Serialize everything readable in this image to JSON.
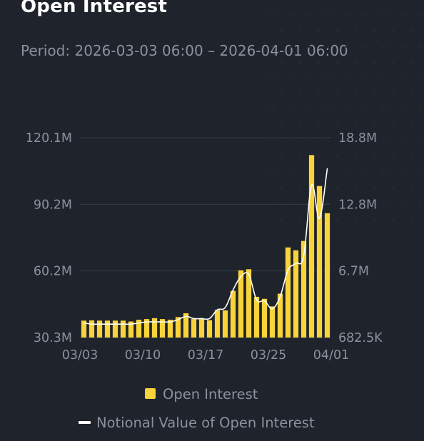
{
  "header": {
    "title": "Open Interest",
    "period_label": "Period:",
    "period_start": "2026-03-03 06:00",
    "period_sep": "–",
    "period_end": "2026-04-01 06:00"
  },
  "colors": {
    "background": "#1f232b",
    "bar": "#f8d33a",
    "line": "#ffffff",
    "grid": "#363b45",
    "text": "#8b919d"
  },
  "chart_data": {
    "type": "bar",
    "title": "Open Interest",
    "grid": true,
    "legend_position": "bottom",
    "x_ticks": [
      "03/03",
      "03/10",
      "03/17",
      "03/25",
      "04/01"
    ],
    "y_left": {
      "ticks": [
        "120.1M",
        "90.2M",
        "60.2M",
        "30.3M"
      ],
      "ylim": [
        30.3,
        120.1
      ],
      "unit": "M"
    },
    "y_right": {
      "ticks": [
        "18.8M",
        "12.8M",
        "6.7M",
        "682.5K"
      ],
      "ylim": [
        0.6825,
        18.8
      ],
      "unit": "M"
    },
    "series": [
      {
        "name": "Open Interest",
        "type": "bar",
        "axis": "left",
        "values": [
          37.9,
          38.0,
          37.9,
          37.9,
          37.9,
          37.9,
          37.5,
          38.3,
          38.6,
          39.0,
          38.6,
          38.3,
          39.5,
          41.2,
          38.6,
          38.6,
          38.1,
          42.7,
          42.5,
          51.3,
          60.5,
          61.0,
          48.6,
          47.7,
          44.3,
          50.0,
          70.8,
          69.5,
          73.7,
          112.3,
          98.4,
          86.2
        ]
      },
      {
        "name": "Notional Value of Open Interest",
        "type": "line",
        "axis": "right",
        "values": [
          2.0,
          1.9,
          1.9,
          1.9,
          1.9,
          1.9,
          1.9,
          2.0,
          2.1,
          2.1,
          2.1,
          2.1,
          2.3,
          2.6,
          2.4,
          2.4,
          2.4,
          3.2,
          3.4,
          5.0,
          6.2,
          6.4,
          4.1,
          4.0,
          3.3,
          4.4,
          6.8,
          7.4,
          8.1,
          14.5,
          11.5,
          16.0
        ]
      }
    ]
  }
}
